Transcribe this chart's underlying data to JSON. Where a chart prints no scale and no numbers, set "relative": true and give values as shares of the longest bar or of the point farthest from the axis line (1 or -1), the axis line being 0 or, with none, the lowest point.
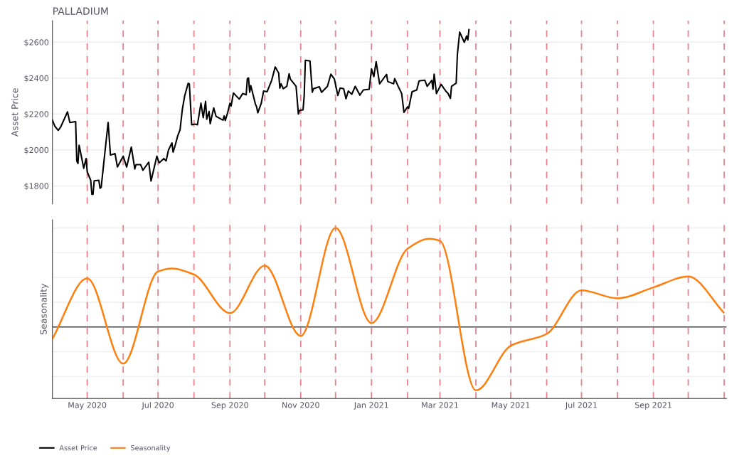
{
  "chart_data": [
    {
      "type": "line",
      "title": "PALLADIUM",
      "ylabel": "Asset Price",
      "tick_labels": "y",
      "grid": true,
      "legend": "bottom",
      "xlim": [
        "2020-04-01",
        "2021-11-03"
      ],
      "xticks": [
        {
          "value": "2020-05-01",
          "label": null
        },
        {
          "value": "2020-07-01",
          "label": null
        },
        {
          "value": "2020-09-01",
          "label": null
        },
        {
          "value": "2020-11-01",
          "label": null
        },
        {
          "value": "2021-01-01",
          "label": null
        },
        {
          "value": "2021-03-01",
          "label": null
        },
        {
          "value": "2021-05-01",
          "label": null
        },
        {
          "value": "2021-07-01",
          "label": null
        },
        {
          "value": "2021-09-01",
          "label": null
        }
      ],
      "ylim": [
        1700,
        2720
      ],
      "yticks": [
        {
          "value": 1800,
          "label": "$1800"
        },
        {
          "value": 2000,
          "label": "$2000"
        },
        {
          "value": 2200,
          "label": "$2200"
        },
        {
          "value": 2400,
          "label": "$2400"
        },
        {
          "value": 2600,
          "label": "$2600"
        }
      ],
      "ref_lines": [
        {
          "axis": "x",
          "value": "2020-05-01",
          "color": "#e8828e",
          "line_style": "dashed"
        },
        {
          "axis": "x",
          "value": "2020-06-01",
          "color": "#e8828e",
          "line_style": "dashed"
        },
        {
          "axis": "x",
          "value": "2020-07-01",
          "color": "#e8828e",
          "line_style": "dashed"
        },
        {
          "axis": "x",
          "value": "2020-08-01",
          "color": "#e8828e",
          "line_style": "dashed"
        },
        {
          "axis": "x",
          "value": "2020-09-01",
          "color": "#e8828e",
          "line_style": "dashed"
        },
        {
          "axis": "x",
          "value": "2020-10-01",
          "color": "#e8828e",
          "line_style": "dashed"
        },
        {
          "axis": "x",
          "value": "2020-11-01",
          "color": "#e8828e",
          "line_style": "dashed"
        },
        {
          "axis": "x",
          "value": "2020-12-01",
          "color": "#e8828e",
          "line_style": "dashed"
        },
        {
          "axis": "x",
          "value": "2021-01-01",
          "color": "#e8828e",
          "line_style": "dashed"
        },
        {
          "axis": "x",
          "value": "2021-02-01",
          "color": "#e8828e",
          "line_style": "dashed"
        },
        {
          "axis": "x",
          "value": "2021-03-01",
          "color": "#e8828e",
          "line_style": "dashed"
        },
        {
          "axis": "x",
          "value": "2021-04-01",
          "color": "#e8828e",
          "line_style": "dashed"
        },
        {
          "axis": "x",
          "value": "2021-05-01",
          "color": "#e8828e",
          "line_style": "dashed"
        },
        {
          "axis": "x",
          "value": "2021-06-01",
          "color": "#e8828e",
          "line_style": "dashed"
        },
        {
          "axis": "x",
          "value": "2021-07-01",
          "color": "#e8828e",
          "line_style": "dashed"
        },
        {
          "axis": "x",
          "value": "2021-08-01",
          "color": "#e8828e",
          "line_style": "dashed"
        },
        {
          "axis": "x",
          "value": "2021-09-01",
          "color": "#e8828e",
          "line_style": "dashed"
        },
        {
          "axis": "x",
          "value": "2021-10-01",
          "color": "#e8828e",
          "line_style": "dashed"
        },
        {
          "axis": "x",
          "value": "2021-11-01",
          "color": "#e8828e",
          "line_style": "dashed"
        }
      ],
      "series": [
        {
          "name": "Asset Price",
          "color": "#000000",
          "x": [
            "2020-04-01",
            "2020-04-03",
            "2020-04-06",
            "2020-04-08",
            "2020-04-14",
            "2020-04-16",
            "2020-04-20",
            "2020-04-21",
            "2020-04-22",
            "2020-04-23",
            "2020-04-24",
            "2020-04-28",
            "2020-04-30",
            "2020-05-01",
            "2020-05-04",
            "2020-05-05",
            "2020-05-06",
            "2020-05-07",
            "2020-05-11",
            "2020-05-12",
            "2020-05-13",
            "2020-05-19",
            "2020-05-21",
            "2020-05-25",
            "2020-05-27",
            "2020-06-01",
            "2020-06-04",
            "2020-06-08",
            "2020-06-11",
            "2020-06-12",
            "2020-06-16",
            "2020-06-18",
            "2020-06-23",
            "2020-06-25",
            "2020-06-30",
            "2020-07-02",
            "2020-07-06",
            "2020-07-08",
            "2020-07-10",
            "2020-07-13",
            "2020-07-14",
            "2020-07-16",
            "2020-07-18",
            "2020-07-20",
            "2020-07-22",
            "2020-07-24",
            "2020-07-27",
            "2020-07-28",
            "2020-07-30",
            "2020-08-02",
            "2020-08-04",
            "2020-08-07",
            "2020-08-09",
            "2020-08-11",
            "2020-08-12",
            "2020-08-14",
            "2020-08-15",
            "2020-08-18",
            "2020-08-20",
            "2020-08-26",
            "2020-08-27",
            "2020-08-28",
            "2020-08-30",
            "2020-09-01",
            "2020-09-02",
            "2020-09-04",
            "2020-09-09",
            "2020-09-12",
            "2020-09-15",
            "2020-09-16",
            "2020-09-17",
            "2020-09-18",
            "2020-09-19",
            "2020-09-23",
            "2020-09-24",
            "2020-09-25",
            "2020-09-28",
            "2020-09-30",
            "2020-10-03",
            "2020-10-07",
            "2020-10-10",
            "2020-10-13",
            "2020-10-14",
            "2020-10-15",
            "2020-10-17",
            "2020-10-20",
            "2020-10-22",
            "2020-10-23",
            "2020-10-28",
            "2020-10-30",
            "2020-10-31",
            "2020-11-03",
            "2020-11-04",
            "2020-11-05",
            "2020-11-09",
            "2020-11-11",
            "2020-11-12",
            "2020-11-17",
            "2020-11-19",
            "2020-11-24",
            "2020-11-27",
            "2020-11-30",
            "2020-12-03",
            "2020-12-05",
            "2020-12-08",
            "2020-12-10",
            "2020-12-12",
            "2020-12-15",
            "2020-12-18",
            "2020-12-22",
            "2020-12-25",
            "2020-12-30",
            "2021-01-01",
            "2021-01-03",
            "2021-01-05",
            "2021-01-08",
            "2021-01-14",
            "2021-01-15",
            "2021-01-20",
            "2021-01-21",
            "2021-01-24",
            "2021-01-27",
            "2021-01-29",
            "2021-02-01",
            "2021-02-02",
            "2021-02-05",
            "2021-02-09",
            "2021-02-11",
            "2021-02-16",
            "2021-02-18",
            "2021-02-22",
            "2021-02-23",
            "2021-02-24",
            "2021-02-26",
            "2021-03-02",
            "2021-03-06",
            "2021-03-08",
            "2021-03-10",
            "2021-03-11",
            "2021-03-15",
            "2021-03-16",
            "2021-03-18",
            "2021-03-22",
            "2021-03-24",
            "2021-03-25",
            "2021-03-26"
          ],
          "values": [
            2166,
            2133,
            2109,
            2126,
            2212,
            2153,
            2157,
            2157,
            1938,
            1925,
            2026,
            1898,
            1952,
            1878,
            1831,
            1753,
            1753,
            1828,
            1831,
            1787,
            1791,
            2153,
            1972,
            1979,
            1905,
            1965,
            1905,
            2016,
            1894,
            1918,
            1918,
            1887,
            1932,
            1827,
            1965,
            1928,
            1952,
            1939,
            1999,
            2039,
            1988,
            2030,
            2079,
            2113,
            2227,
            2301,
            2371,
            2368,
            2140,
            2144,
            2140,
            2260,
            2180,
            2270,
            2171,
            2214,
            2146,
            2234,
            2187,
            2166,
            2189,
            2164,
            2207,
            2260,
            2244,
            2317,
            2283,
            2314,
            2307,
            2397,
            2401,
            2321,
            2358,
            2254,
            2240,
            2207,
            2260,
            2328,
            2324,
            2388,
            2462,
            2428,
            2344,
            2368,
            2341,
            2354,
            2424,
            2395,
            2354,
            2200,
            2220,
            2223,
            2301,
            2499,
            2495,
            2321,
            2341,
            2352,
            2321,
            2354,
            2422,
            2395,
            2303,
            2345,
            2341,
            2285,
            2328,
            2310,
            2354,
            2305,
            2334,
            2338,
            2451,
            2408,
            2491,
            2368,
            2421,
            2381,
            2368,
            2397,
            2354,
            2314,
            2209,
            2240,
            2231,
            2324,
            2334,
            2384,
            2388,
            2354,
            2388,
            2338,
            2422,
            2314,
            2365,
            2328,
            2314,
            2287,
            2354,
            2372,
            2529,
            2656,
            2599,
            2634,
            2612,
            2670
          ]
        }
      ]
    },
    {
      "type": "line",
      "ylabel": "Seasonality",
      "relative": true,
      "tick_labels": "x",
      "grid": true,
      "legend": "bottom",
      "xlim": [
        "2020-04-01",
        "2021-11-03"
      ],
      "xticks": [
        {
          "value": "2020-05-01",
          "label": "May 2020"
        },
        {
          "value": "2020-07-01",
          "label": "Jul 2020"
        },
        {
          "value": "2020-09-01",
          "label": "Sep 2020"
        },
        {
          "value": "2020-11-01",
          "label": "Nov 2020"
        },
        {
          "value": "2021-01-01",
          "label": "Jan 2021"
        },
        {
          "value": "2021-03-01",
          "label": "Mar 2021"
        },
        {
          "value": "2021-05-01",
          "label": "May 2021"
        },
        {
          "value": "2021-07-01",
          "label": "Jul 2021"
        },
        {
          "value": "2021-09-01",
          "label": "Sep 2021"
        }
      ],
      "ref_lines": [
        {
          "axis": "x",
          "value": "2020-05-01",
          "color": "#e8828e",
          "line_style": "dashed"
        },
        {
          "axis": "x",
          "value": "2020-06-01",
          "color": "#e8828e",
          "line_style": "dashed"
        },
        {
          "axis": "x",
          "value": "2020-07-01",
          "color": "#e8828e",
          "line_style": "dashed"
        },
        {
          "axis": "x",
          "value": "2020-08-01",
          "color": "#e8828e",
          "line_style": "dashed"
        },
        {
          "axis": "x",
          "value": "2020-09-01",
          "color": "#e8828e",
          "line_style": "dashed"
        },
        {
          "axis": "x",
          "value": "2020-10-01",
          "color": "#e8828e",
          "line_style": "dashed"
        },
        {
          "axis": "x",
          "value": "2020-11-01",
          "color": "#e8828e",
          "line_style": "dashed"
        },
        {
          "axis": "x",
          "value": "2020-12-01",
          "color": "#e8828e",
          "line_style": "dashed"
        },
        {
          "axis": "x",
          "value": "2021-01-01",
          "color": "#e8828e",
          "line_style": "dashed"
        },
        {
          "axis": "x",
          "value": "2021-02-01",
          "color": "#e8828e",
          "line_style": "dashed"
        },
        {
          "axis": "x",
          "value": "2021-03-01",
          "color": "#e8828e",
          "line_style": "dashed"
        },
        {
          "axis": "x",
          "value": "2021-04-01",
          "color": "#e8828e",
          "line_style": "dashed"
        },
        {
          "axis": "x",
          "value": "2021-05-01",
          "color": "#e8828e",
          "line_style": "dashed"
        },
        {
          "axis": "x",
          "value": "2021-06-01",
          "color": "#e8828e",
          "line_style": "dashed"
        },
        {
          "axis": "x",
          "value": "2021-07-01",
          "color": "#e8828e",
          "line_style": "dashed"
        },
        {
          "axis": "x",
          "value": "2021-08-01",
          "color": "#e8828e",
          "line_style": "dashed"
        },
        {
          "axis": "x",
          "value": "2021-09-01",
          "color": "#e8828e",
          "line_style": "dashed"
        },
        {
          "axis": "x",
          "value": "2021-10-01",
          "color": "#e8828e",
          "line_style": "dashed"
        },
        {
          "axis": "x",
          "value": "2021-11-01",
          "color": "#e8828e",
          "line_style": "dashed"
        }
      ],
      "series": [
        {
          "name": "Seasonality",
          "color": "#ff7f0e",
          "x": [
            "2020-04-01",
            "2020-05-01",
            "2020-06-01",
            "2020-07-01",
            "2020-07-13",
            "2020-08-01",
            "2020-09-01",
            "2020-10-01",
            "2020-11-01",
            "2020-12-01",
            "2021-01-01",
            "2021-02-01",
            "2021-02-20",
            "2021-03-01",
            "2021-04-01",
            "2021-05-01",
            "2021-06-01",
            "2021-07-01",
            "2021-08-01",
            "2021-09-01",
            "2021-10-01",
            "2021-11-01"
          ],
          "values": [
            -0.12,
            0.49,
            -0.37,
            0.56,
            0.59,
            0.53,
            0.14,
            0.62,
            -0.09,
            1.0,
            0.04,
            0.79,
            0.89,
            0.87,
            -0.64,
            -0.19,
            -0.07,
            0.37,
            0.29,
            0.4,
            0.51,
            0.14
          ]
        }
      ]
    }
  ]
}
